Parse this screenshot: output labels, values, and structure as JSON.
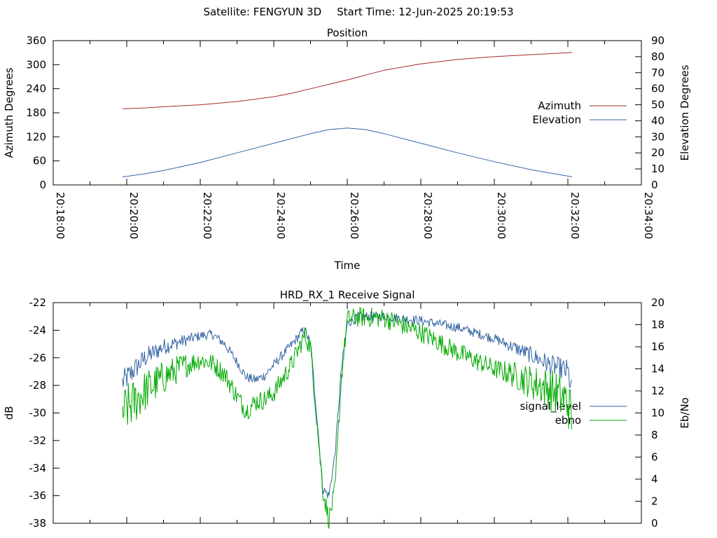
{
  "header": {
    "satellite_label": "Satellite: FENGYUN 3D",
    "start_label": "Start Time: 12-Jun-2025 20:19:53"
  },
  "chart_data": [
    {
      "type": "line",
      "title": "Position",
      "xlabel": "Time",
      "ylabel": "Azimuth Degrees",
      "y2label": "Elevation Degrees",
      "xlim": [
        "20:18:00",
        "20:34:00"
      ],
      "ylim": [
        0,
        360
      ],
      "y2lim": [
        0,
        90
      ],
      "x_ticks": [
        "20:18:00",
        "20:20:00",
        "20:22:00",
        "20:24:00",
        "20:26:00",
        "20:28:00",
        "20:30:00",
        "20:32:00",
        "20:34:00"
      ],
      "y_ticks": [
        "0",
        "60",
        "120",
        "180",
        "240",
        "300",
        "360"
      ],
      "y2_ticks": [
        "0",
        "10",
        "20",
        "30",
        "40",
        "50",
        "60",
        "70",
        "80",
        "90"
      ],
      "legend_position": "right",
      "grid": false,
      "series": [
        {
          "name": "Azimuth",
          "axis": "y",
          "color": "#a52a2a",
          "x": [
            "20:19:53",
            "20:20:30",
            "20:21:00",
            "20:22:00",
            "20:23:00",
            "20:24:00",
            "20:24:30",
            "20:25:00",
            "20:25:30",
            "20:26:00",
            "20:26:30",
            "20:27:00",
            "20:28:00",
            "20:29:00",
            "20:30:00",
            "20:31:00",
            "20:32:00",
            "20:32:07"
          ],
          "values": [
            190,
            192,
            195,
            200,
            208,
            220,
            229,
            240,
            251,
            262,
            274,
            286,
            302,
            313,
            320,
            325,
            330,
            331
          ]
        },
        {
          "name": "Elevation",
          "axis": "y2",
          "color": "#3465a4",
          "x": [
            "20:19:53",
            "20:20:30",
            "20:21:00",
            "20:22:00",
            "20:23:00",
            "20:24:00",
            "20:25:00",
            "20:25:30",
            "20:26:00",
            "20:26:30",
            "20:27:00",
            "20:28:00",
            "20:29:00",
            "20:30:00",
            "20:31:00",
            "20:32:00",
            "20:32:07"
          ],
          "values": [
            5,
            7,
            9,
            14,
            20,
            26,
            32,
            34.5,
            35.5,
            34.5,
            32,
            26,
            20,
            14.5,
            9.5,
            5.5,
            5
          ]
        }
      ]
    },
    {
      "type": "line",
      "title": "HRD_RX_1 Receive Signal",
      "ylabel": "dB",
      "y2label": "Eb/No",
      "xlim": [
        "20:18:00",
        "20:34:00"
      ],
      "ylim": [
        -38,
        -22
      ],
      "y2lim": [
        0,
        20
      ],
      "y_ticks": [
        "-22",
        "-24",
        "-26",
        "-28",
        "-30",
        "-32",
        "-34",
        "-36",
        "-38"
      ],
      "y2_ticks": [
        "0",
        "2",
        "4",
        "6",
        "8",
        "10",
        "12",
        "14",
        "16",
        "18",
        "20"
      ],
      "legend_position": "right",
      "grid": false,
      "series": [
        {
          "name": "signal_level",
          "axis": "y",
          "color": "#3465a4",
          "x": [
            "20:19:53",
            "20:20:30",
            "20:21:00",
            "20:21:30",
            "20:22:00",
            "20:22:20",
            "20:22:40",
            "20:23:00",
            "20:23:15",
            "20:23:30",
            "20:23:45",
            "20:24:00",
            "20:24:30",
            "20:24:50",
            "20:25:00",
            "20:25:10",
            "20:25:20",
            "20:25:30",
            "20:25:40",
            "20:25:50",
            "20:26:00",
            "20:26:20",
            "20:27:00",
            "20:28:00",
            "20:29:00",
            "20:30:00",
            "20:30:30",
            "20:31:00",
            "20:31:30",
            "20:32:00",
            "20:32:07"
          ],
          "values": [
            -27.8,
            -26.0,
            -25.2,
            -24.8,
            -24.4,
            -24.3,
            -25.0,
            -26.3,
            -27.4,
            -27.6,
            -27.3,
            -26.5,
            -25.0,
            -23.9,
            -25.0,
            -30.0,
            -35.5,
            -36.0,
            -33.0,
            -27.0,
            -23.5,
            -23.0,
            -23.0,
            -23.3,
            -23.8,
            -24.6,
            -25.2,
            -25.8,
            -26.5,
            -27.0,
            -28.6
          ]
        },
        {
          "name": "ebno",
          "axis": "y2",
          "color": "#00aa00",
          "x": [
            "20:19:53",
            "20:20:30",
            "20:21:00",
            "20:21:30",
            "20:22:00",
            "20:22:20",
            "20:22:40",
            "20:23:00",
            "20:23:15",
            "20:23:30",
            "20:23:45",
            "20:24:00",
            "20:24:30",
            "20:24:50",
            "20:25:00",
            "20:25:10",
            "20:25:20",
            "20:25:30",
            "20:25:40",
            "20:25:50",
            "20:26:00",
            "20:26:20",
            "20:27:00",
            "20:28:00",
            "20:29:00",
            "20:30:00",
            "20:30:30",
            "20:31:00",
            "20:31:30",
            "20:32:00",
            "20:32:07"
          ],
          "values": [
            10.0,
            12.0,
            13.2,
            14.2,
            14.8,
            14.5,
            13.5,
            11.5,
            10.2,
            11.0,
            11.2,
            11.8,
            14.5,
            17.0,
            16.0,
            9.5,
            3.0,
            0.3,
            3.0,
            13.0,
            18.5,
            18.7,
            18.6,
            17.3,
            15.5,
            14.0,
            13.5,
            12.8,
            12.2,
            11.0,
            9.5
          ]
        }
      ]
    }
  ]
}
